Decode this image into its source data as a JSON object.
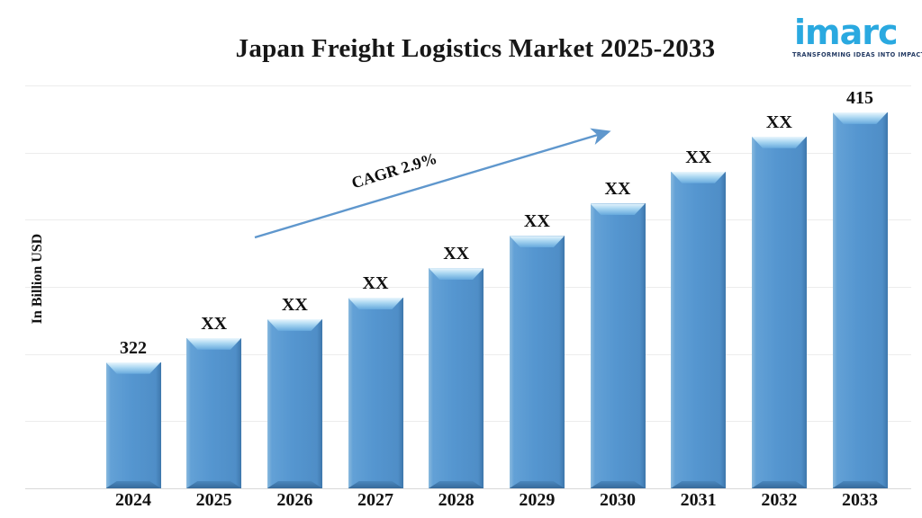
{
  "header": {
    "title": "Japan Freight Logistics Market 2025-2033",
    "logo": {
      "name": "imarc",
      "tagline": "TRANSFORMING IDEAS INTO IMPACT",
      "brand_color": "#2aa9e0",
      "tagline_color": "#233a63"
    }
  },
  "chart_data": {
    "type": "bar",
    "title": "Japan Freight Logistics Market 2025-2033",
    "ylabel": "In Billion USD",
    "unit": "Billion USD",
    "categories": [
      "2024",
      "2025",
      "2026",
      "2027",
      "2028",
      "2029",
      "2030",
      "2031",
      "2032",
      "2033"
    ],
    "value_labels": [
      "322",
      "XX",
      "XX",
      "XX",
      "XX",
      "XX",
      "XX",
      "XX",
      "XX",
      "415"
    ],
    "estimated_values": [
      322,
      331,
      338,
      346,
      357,
      369,
      381,
      393,
      406,
      415
    ],
    "ylim": [
      275,
      425
    ],
    "gridline_step": 25,
    "grid": true,
    "legend": false,
    "tick_labels_shown": false,
    "bar_color": "#5596d0",
    "annotation": {
      "label": "CAGR 2.9%",
      "arrow_color": "#5f97cd",
      "from_category": "2024",
      "to_category": "2033"
    }
  }
}
